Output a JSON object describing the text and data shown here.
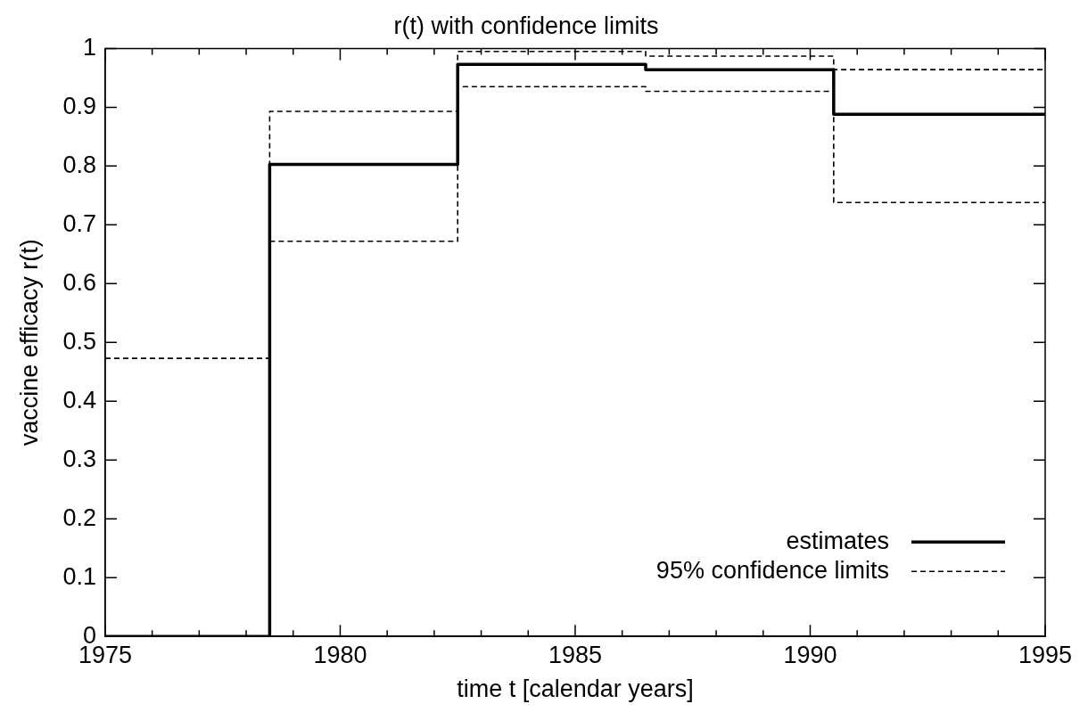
{
  "chart_data": {
    "type": "step",
    "title": "r(t) with confidence limits",
    "xlabel": "time t [calendar years]",
    "ylabel": "vaccine efficacy r(t)",
    "x": [
      1975,
      1978.5,
      1982.5,
      1986.5,
      1990.5,
      1995
    ],
    "series": [
      {
        "name": "estimates",
        "color": "#000000",
        "line_style": "solid",
        "values": [
          0,
          0.803,
          0.973,
          0.964,
          0.888,
          0.888
        ]
      },
      {
        "name": "95% confidence limits",
        "color": "#000000",
        "line_style": "dashed",
        "values": [
          0.473,
          0.893,
          0.995,
          0.987,
          0.964,
          0.964
        ]
      },
      {
        "color": "#000000",
        "line_style": "dashed",
        "values": [
          null,
          0.672,
          0.935,
          0.927,
          0.738,
          0.738
        ]
      }
    ],
    "xlim": [
      1975,
      1995
    ],
    "xticks": [
      1975,
      {
        "value": 1976,
        "label": null
      },
      {
        "value": 1977,
        "label": null
      },
      {
        "value": 1978,
        "label": null
      },
      {
        "value": 1979,
        "label": null
      },
      1980,
      {
        "value": 1981,
        "label": null
      },
      {
        "value": 1982,
        "label": null
      },
      {
        "value": 1983,
        "label": null
      },
      {
        "value": 1984,
        "label": null
      },
      1985,
      {
        "value": 1986,
        "label": null
      },
      {
        "value": 1987,
        "label": null
      },
      {
        "value": 1988,
        "label": null
      },
      {
        "value": 1989,
        "label": null
      },
      1990,
      {
        "value": 1991,
        "label": null
      },
      {
        "value": 1992,
        "label": null
      },
      {
        "value": 1993,
        "label": null
      },
      {
        "value": 1994,
        "label": null
      },
      1995
    ],
    "ylim": [
      0,
      1
    ],
    "yticks": [
      0,
      0.1,
      0.2,
      0.3,
      0.4,
      0.5,
      0.6,
      0.7,
      0.8,
      0.9,
      1
    ],
    "grid": false,
    "legend": "bottom right",
    "marker": "none"
  }
}
